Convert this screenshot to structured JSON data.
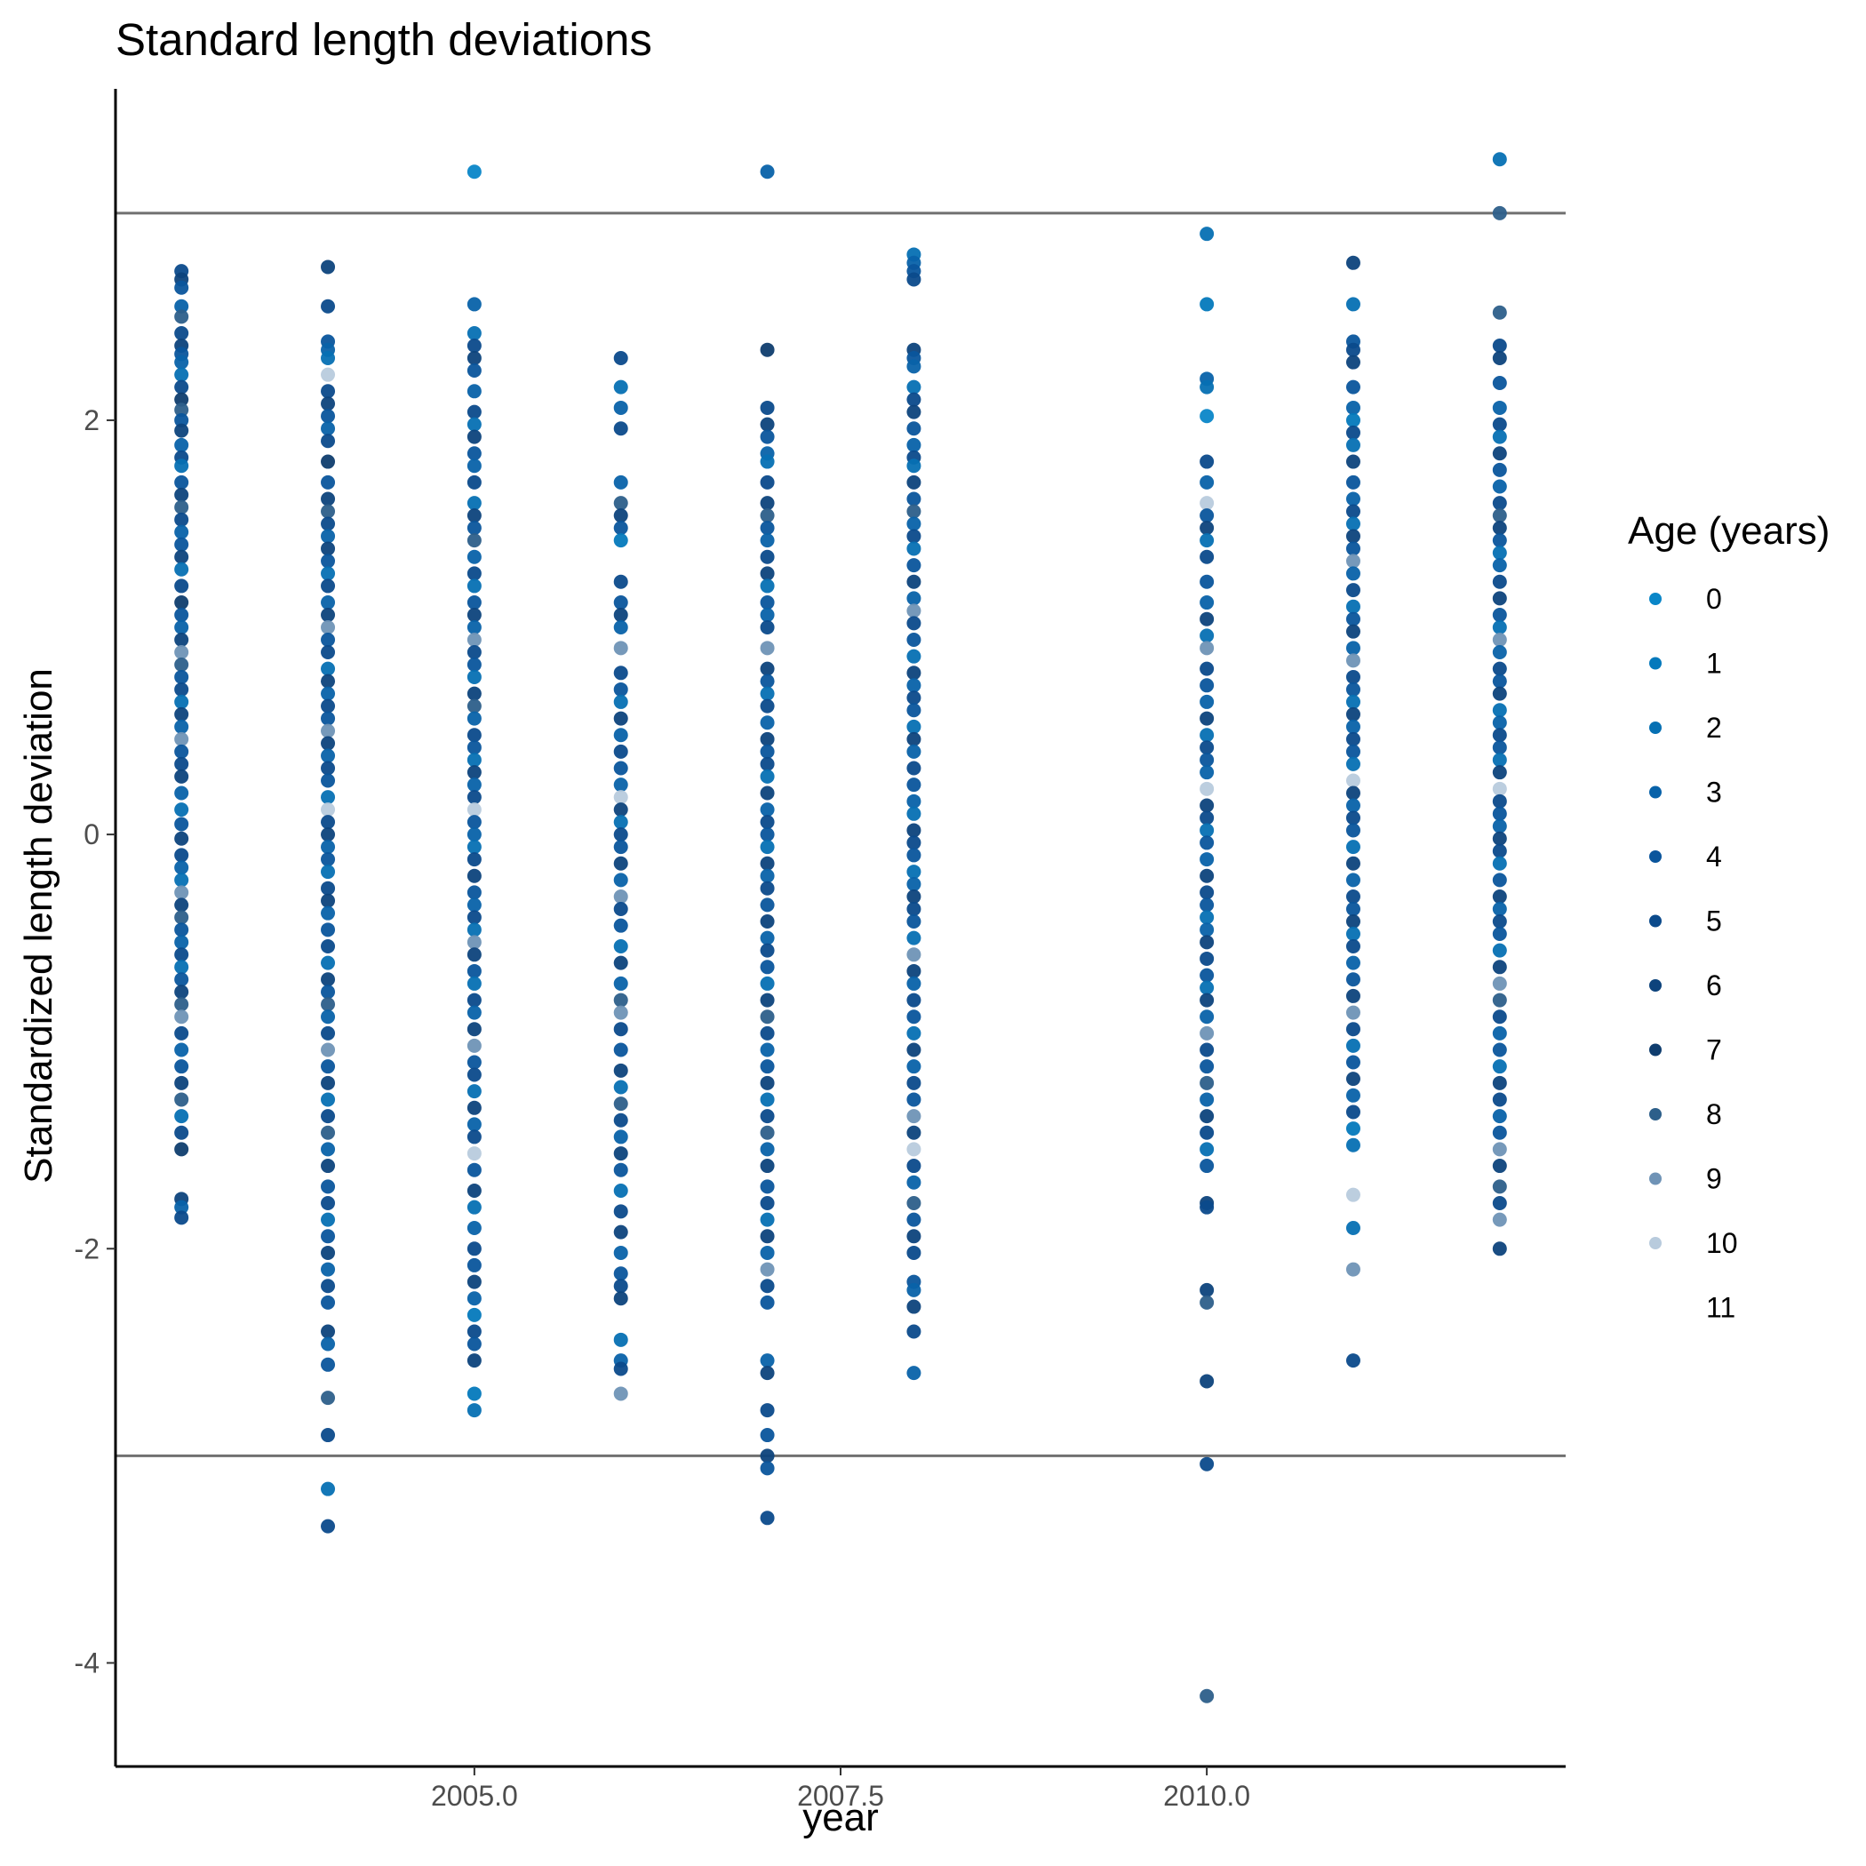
{
  "chart_data": {
    "type": "scatter",
    "title": "Standard length deviations",
    "xlabel": "year",
    "ylabel": "Standardized length deviation",
    "xlim": [
      2002.55,
      2012.45
    ],
    "ylim": [
      -4.5,
      3.6
    ],
    "x_ticks": [
      2005.0,
      2007.5,
      2010.0
    ],
    "x_tick_labels": [
      "2005.0",
      "2007.5",
      "2010.0"
    ],
    "y_ticks": [
      -4,
      -2,
      0,
      2
    ],
    "y_tick_labels": [
      "-4",
      "-2",
      "0",
      "2"
    ],
    "reference_lines": [
      3,
      -3
    ],
    "grid": false,
    "legend": {
      "title": "Age (years)",
      "placement": "right",
      "labels": [
        "0",
        "1",
        "2",
        "3",
        "4",
        "5",
        "6",
        "7",
        "8",
        "9",
        "10",
        "11"
      ],
      "colors": [
        "#0a86c8",
        "#0479bc",
        "#0670b3",
        "#0862a9",
        "#0a559c",
        "#0b4a8b",
        "#0d437c",
        "#0f3d6e",
        "#2d5f8a",
        "#6f93b6",
        "#b8cbdd",
        "#ffffff"
      ]
    },
    "series": [
      {
        "x": 2003,
        "values": [
          2.72,
          2.68,
          2.64,
          2.55,
          2.5,
          2.42,
          2.36,
          2.32,
          2.28,
          2.22,
          2.16,
          2.1,
          2.05,
          2.0,
          1.95,
          1.88,
          1.82,
          1.78,
          1.7,
          1.64,
          1.58,
          1.52,
          1.46,
          1.4,
          1.34,
          1.28,
          1.2,
          1.12,
          1.06,
          1.0,
          0.94,
          0.88,
          0.82,
          0.76,
          0.7,
          0.64,
          0.58,
          0.52,
          0.46,
          0.4,
          0.34,
          0.28,
          0.2,
          0.12,
          0.05,
          -0.02,
          -0.1,
          -0.16,
          -0.22,
          -0.28,
          -0.34,
          -0.4,
          -0.46,
          -0.52,
          -0.58,
          -0.64,
          -0.7,
          -0.76,
          -0.82,
          -0.88,
          -0.96,
          -1.04,
          -1.12,
          -1.2,
          -1.28,
          -1.36,
          -1.44,
          -1.52,
          -1.76,
          -1.8,
          -1.85
        ],
        "colors": [
          5,
          6,
          4,
          3,
          8,
          5,
          6,
          4,
          3,
          2,
          5,
          7,
          8,
          4,
          6,
          3,
          5,
          2,
          4,
          6,
          8,
          5,
          3,
          4,
          6,
          2,
          5,
          7,
          4,
          3,
          6,
          9,
          8,
          4,
          5,
          2,
          6,
          3,
          9,
          4,
          5,
          6,
          3,
          2,
          4,
          6,
          5,
          3,
          2,
          9,
          6,
          8,
          4,
          3,
          5,
          2,
          4,
          6,
          8,
          9,
          5,
          3,
          4,
          6,
          8,
          2,
          5,
          7,
          6,
          3,
          5
        ]
      },
      {
        "x": 2004,
        "values": [
          2.74,
          2.55,
          2.38,
          2.34,
          2.3,
          2.22,
          2.14,
          2.08,
          2.02,
          1.96,
          1.9,
          1.8,
          1.7,
          1.62,
          1.56,
          1.5,
          1.44,
          1.38,
          1.32,
          1.26,
          1.2,
          1.12,
          1.06,
          1.0,
          0.94,
          0.88,
          0.8,
          0.74,
          0.68,
          0.62,
          0.56,
          0.5,
          0.44,
          0.38,
          0.32,
          0.26,
          0.18,
          0.12,
          0.06,
          0.0,
          -0.06,
          -0.12,
          -0.18,
          -0.26,
          -0.32,
          -0.38,
          -0.46,
          -0.54,
          -0.62,
          -0.7,
          -0.76,
          -0.82,
          -0.88,
          -0.96,
          -1.04,
          -1.12,
          -1.2,
          -1.28,
          -1.36,
          -1.44,
          -1.52,
          -1.6,
          -1.7,
          -1.78,
          -1.86,
          -1.94,
          -2.02,
          -2.1,
          -2.18,
          -2.26,
          -2.4,
          -2.46,
          -2.56,
          -2.72,
          -2.9,
          -3.16,
          -3.34
        ],
        "colors": [
          6,
          5,
          4,
          3,
          2,
          10,
          5,
          6,
          4,
          3,
          5,
          7,
          4,
          6,
          8,
          5,
          3,
          6,
          4,
          2,
          5,
          3,
          6,
          9,
          4,
          5,
          2,
          6,
          3,
          5,
          4,
          9,
          6,
          3,
          5,
          4,
          2,
          10,
          5,
          6,
          3,
          4,
          2,
          5,
          6,
          3,
          4,
          5,
          2,
          6,
          4,
          8,
          3,
          5,
          9,
          4,
          6,
          2,
          5,
          8,
          3,
          6,
          4,
          5,
          2,
          4,
          6,
          3,
          5,
          4,
          6,
          3,
          4,
          8,
          5,
          2,
          5
        ]
      },
      {
        "x": 2005,
        "values": [
          3.2,
          2.56,
          2.42,
          2.36,
          2.3,
          2.24,
          2.14,
          2.04,
          1.98,
          1.92,
          1.84,
          1.78,
          1.7,
          1.6,
          1.54,
          1.48,
          1.42,
          1.34,
          1.26,
          1.2,
          1.12,
          1.06,
          1.0,
          0.94,
          0.88,
          0.82,
          0.76,
          0.68,
          0.62,
          0.56,
          0.48,
          0.42,
          0.36,
          0.3,
          0.24,
          0.18,
          0.12,
          0.06,
          0.0,
          -0.06,
          -0.12,
          -0.2,
          -0.28,
          -0.34,
          -0.4,
          -0.46,
          -0.52,
          -0.58,
          -0.66,
          -0.72,
          -0.8,
          -0.86,
          -0.94,
          -1.02,
          -1.1,
          -1.16,
          -1.24,
          -1.32,
          -1.4,
          -1.46,
          -1.54,
          -1.62,
          -1.72,
          -1.8,
          -1.9,
          -2.0,
          -2.08,
          -2.16,
          -2.24,
          -2.32,
          -2.4,
          -2.46,
          -2.54,
          -2.7,
          -2.78
        ],
        "colors": [
          0,
          3,
          2,
          5,
          6,
          4,
          3,
          5,
          2,
          6,
          4,
          3,
          5,
          2,
          6,
          4,
          8,
          3,
          5,
          2,
          4,
          6,
          3,
          9,
          5,
          4,
          2,
          6,
          8,
          3,
          5,
          4,
          2,
          6,
          3,
          5,
          10,
          4,
          3,
          2,
          5,
          6,
          4,
          3,
          5,
          2,
          9,
          6,
          4,
          2,
          5,
          3,
          6,
          9,
          4,
          5,
          2,
          6,
          3,
          5,
          10,
          4,
          6,
          2,
          3,
          5,
          4,
          6,
          3,
          1,
          5,
          4,
          6,
          1,
          2
        ]
      },
      {
        "x": 2006,
        "values": [
          2.3,
          2.16,
          2.06,
          1.96,
          1.7,
          1.6,
          1.54,
          1.48,
          1.42,
          1.22,
          1.12,
          1.06,
          1.0,
          0.9,
          0.78,
          0.7,
          0.64,
          0.56,
          0.48,
          0.4,
          0.32,
          0.24,
          0.18,
          0.12,
          0.06,
          0.0,
          -0.06,
          -0.14,
          -0.22,
          -0.3,
          -0.36,
          -0.44,
          -0.54,
          -0.62,
          -0.72,
          -0.8,
          -0.86,
          -0.94,
          -1.04,
          -1.14,
          -1.22,
          -1.3,
          -1.38,
          -1.46,
          -1.54,
          -1.62,
          -1.72,
          -1.82,
          -1.92,
          -2.02,
          -2.12,
          -2.18,
          -2.24,
          -2.44,
          -2.54,
          -2.58,
          -2.7
        ],
        "colors": [
          5,
          2,
          3,
          5,
          3,
          8,
          6,
          4,
          1,
          5,
          4,
          6,
          3,
          9,
          5,
          4,
          2,
          6,
          3,
          5,
          4,
          3,
          10,
          6,
          2,
          5,
          4,
          6,
          3,
          9,
          5,
          4,
          2,
          6,
          3,
          8,
          9,
          5,
          4,
          6,
          2,
          8,
          5,
          3,
          6,
          4,
          2,
          5,
          6,
          3,
          4,
          5,
          6,
          2,
          3,
          5,
          9
        ]
      },
      {
        "x": 2007,
        "values": [
          3.2,
          2.34,
          2.06,
          1.98,
          1.92,
          1.84,
          1.8,
          1.7,
          1.6,
          1.54,
          1.48,
          1.42,
          1.34,
          1.26,
          1.2,
          1.12,
          1.06,
          1.0,
          0.9,
          0.8,
          0.74,
          0.68,
          0.62,
          0.54,
          0.46,
          0.4,
          0.34,
          0.28,
          0.2,
          0.12,
          0.06,
          0.0,
          -0.06,
          -0.14,
          -0.2,
          -0.26,
          -0.34,
          -0.42,
          -0.5,
          -0.56,
          -0.64,
          -0.72,
          -0.8,
          -0.88,
          -0.96,
          -1.04,
          -1.12,
          -1.2,
          -1.28,
          -1.36,
          -1.44,
          -1.52,
          -1.6,
          -1.7,
          -1.78,
          -1.86,
          -1.94,
          -2.02,
          -2.1,
          -2.18,
          -2.26,
          -2.54,
          -2.6,
          -2.78,
          -2.9,
          -3.0,
          -3.06,
          -3.3
        ],
        "colors": [
          3,
          7,
          5,
          6,
          4,
          3,
          2,
          5,
          6,
          8,
          4,
          3,
          5,
          6,
          2,
          4,
          3,
          5,
          9,
          6,
          4,
          2,
          5,
          3,
          6,
          4,
          5,
          2,
          6,
          3,
          5,
          4,
          2,
          6,
          3,
          5,
          4,
          6,
          3,
          5,
          4,
          2,
          6,
          8,
          5,
          3,
          4,
          6,
          2,
          5,
          8,
          3,
          6,
          4,
          5,
          2,
          6,
          3,
          9,
          5,
          4,
          3,
          6,
          5,
          4,
          6,
          4,
          5
        ]
      },
      {
        "x": 2008,
        "values": [
          2.8,
          2.76,
          2.72,
          2.68,
          2.34,
          2.3,
          2.26,
          2.16,
          2.1,
          2.04,
          1.96,
          1.88,
          1.82,
          1.78,
          1.7,
          1.62,
          1.56,
          1.5,
          1.44,
          1.38,
          1.3,
          1.22,
          1.14,
          1.08,
          1.02,
          0.94,
          0.86,
          0.78,
          0.72,
          0.66,
          0.6,
          0.52,
          0.46,
          0.4,
          0.32,
          0.24,
          0.16,
          0.1,
          0.02,
          -0.04,
          -0.1,
          -0.18,
          -0.24,
          -0.3,
          -0.36,
          -0.42,
          -0.5,
          -0.58,
          -0.66,
          -0.72,
          -0.8,
          -0.88,
          -0.96,
          -1.04,
          -1.12,
          -1.2,
          -1.28,
          -1.36,
          -1.44,
          -1.52,
          -1.6,
          -1.68,
          -1.78,
          -1.86,
          -1.94,
          -2.02,
          -2.16,
          -2.2,
          -2.28,
          -2.4,
          -2.6
        ],
        "colors": [
          2,
          3,
          4,
          5,
          6,
          4,
          3,
          2,
          5,
          6,
          4,
          3,
          5,
          2,
          6,
          4,
          8,
          3,
          5,
          2,
          4,
          6,
          3,
          9,
          5,
          4,
          2,
          6,
          3,
          5,
          4,
          2,
          6,
          3,
          5,
          4,
          3,
          2,
          6,
          5,
          4,
          2,
          3,
          6,
          5,
          4,
          2,
          9,
          6,
          3,
          5,
          4,
          2,
          6,
          3,
          5,
          4,
          9,
          6,
          10,
          5,
          3,
          8,
          4,
          6,
          5,
          4,
          3,
          6,
          5,
          3
        ]
      },
      {
        "x": 2010,
        "values": [
          2.9,
          2.56,
          2.2,
          2.16,
          2.02,
          1.8,
          1.7,
          1.6,
          1.54,
          1.48,
          1.42,
          1.34,
          1.22,
          1.12,
          1.04,
          0.96,
          0.9,
          0.8,
          0.72,
          0.64,
          0.56,
          0.48,
          0.42,
          0.36,
          0.3,
          0.22,
          0.14,
          0.08,
          0.02,
          -0.04,
          -0.12,
          -0.2,
          -0.28,
          -0.34,
          -0.4,
          -0.46,
          -0.52,
          -0.6,
          -0.68,
          -0.74,
          -0.8,
          -0.88,
          -0.96,
          -1.04,
          -1.12,
          -1.2,
          -1.28,
          -1.36,
          -1.44,
          -1.52,
          -1.6,
          -1.78,
          -1.8,
          -2.2,
          -2.26,
          -2.64,
          -3.04,
          -4.16
        ],
        "colors": [
          2,
          1,
          3,
          2,
          0,
          5,
          3,
          10,
          4,
          6,
          2,
          5,
          4,
          3,
          6,
          2,
          9,
          5,
          4,
          3,
          6,
          2,
          5,
          4,
          3,
          10,
          6,
          5,
          2,
          4,
          3,
          6,
          5,
          4,
          2,
          3,
          6,
          5,
          4,
          2,
          6,
          3,
          9,
          5,
          4,
          8,
          3,
          6,
          5,
          2,
          4,
          6,
          5,
          6,
          8,
          6,
          5,
          8
        ]
      },
      {
        "x": 2011,
        "values": [
          2.76,
          2.56,
          2.38,
          2.34,
          2.28,
          2.16,
          2.06,
          2.0,
          1.94,
          1.88,
          1.8,
          1.7,
          1.62,
          1.56,
          1.5,
          1.44,
          1.38,
          1.32,
          1.26,
          1.18,
          1.1,
          1.04,
          0.98,
          0.9,
          0.84,
          0.76,
          0.7,
          0.64,
          0.58,
          0.52,
          0.46,
          0.4,
          0.34,
          0.26,
          0.2,
          0.14,
          0.08,
          0.02,
          -0.06,
          -0.14,
          -0.22,
          -0.3,
          -0.36,
          -0.42,
          -0.48,
          -0.54,
          -0.62,
          -0.7,
          -0.78,
          -0.86,
          -0.94,
          -1.02,
          -1.1,
          -1.18,
          -1.26,
          -1.34,
          -1.42,
          -1.5,
          -1.74,
          -1.9,
          -2.1,
          -2.54
        ],
        "colors": [
          6,
          2,
          4,
          5,
          6,
          4,
          3,
          1,
          5,
          2,
          6,
          4,
          3,
          5,
          2,
          6,
          4,
          9,
          3,
          5,
          2,
          4,
          6,
          3,
          9,
          5,
          4,
          2,
          6,
          3,
          5,
          4,
          2,
          10,
          6,
          3,
          5,
          4,
          2,
          6,
          3,
          5,
          4,
          6,
          2,
          5,
          3,
          4,
          6,
          9,
          5,
          2,
          4,
          6,
          3,
          5,
          1,
          2,
          10,
          2,
          9,
          5
        ]
      },
      {
        "x": 2012,
        "values": [
          3.26,
          3.0,
          2.52,
          2.36,
          2.3,
          2.18,
          2.06,
          1.98,
          1.92,
          1.84,
          1.76,
          1.68,
          1.6,
          1.54,
          1.48,
          1.42,
          1.36,
          1.3,
          1.22,
          1.14,
          1.06,
          1.0,
          0.94,
          0.88,
          0.8,
          0.74,
          0.68,
          0.6,
          0.54,
          0.48,
          0.42,
          0.36,
          0.3,
          0.22,
          0.16,
          0.1,
          0.04,
          -0.02,
          -0.08,
          -0.14,
          -0.22,
          -0.3,
          -0.36,
          -0.42,
          -0.48,
          -0.56,
          -0.64,
          -0.72,
          -0.8,
          -0.88,
          -0.96,
          -1.04,
          -1.12,
          -1.2,
          -1.28,
          -1.36,
          -1.44,
          -1.52,
          -1.6,
          -1.7,
          -1.78,
          -1.86,
          -2.0
        ],
        "colors": [
          2,
          8,
          8,
          5,
          6,
          4,
          3,
          5,
          2,
          6,
          4,
          3,
          5,
          8,
          6,
          4,
          2,
          3,
          5,
          6,
          4,
          2,
          9,
          3,
          5,
          4,
          6,
          2,
          3,
          5,
          4,
          2,
          6,
          10,
          5,
          4,
          3,
          6,
          5,
          2,
          4,
          6,
          3,
          5,
          4,
          2,
          6,
          9,
          8,
          5,
          3,
          4,
          2,
          6,
          5,
          3,
          4,
          9,
          6,
          8,
          5,
          9,
          6
        ]
      }
    ]
  }
}
